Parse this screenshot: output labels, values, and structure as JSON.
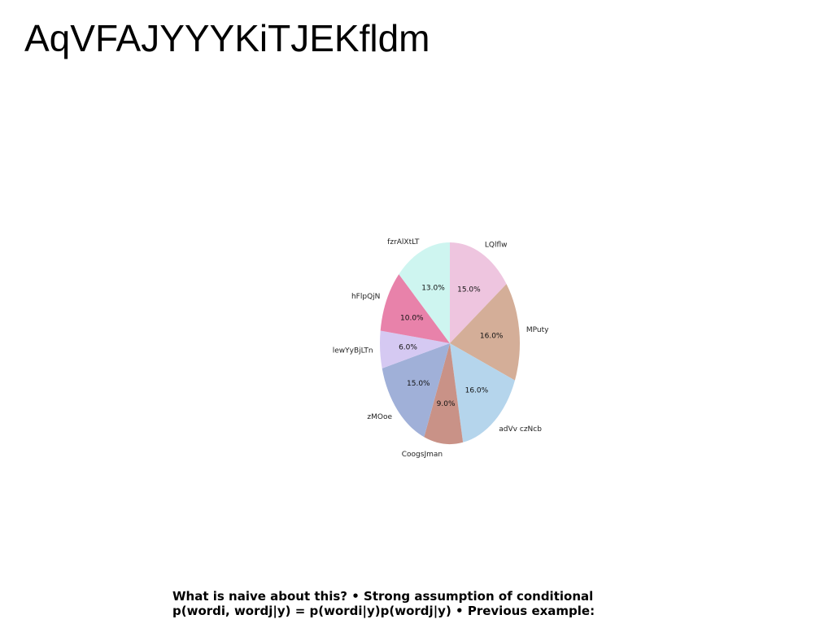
{
  "slide": {
    "title": "AqVFAJYYYKiTJEKfldm",
    "caption_line1": "What is naive about this? • Strong assumption of conditional",
    "caption_line2": "p(wordi, wordj|y) = p(wordi|y)p(wordj|y) • Previous example:"
  },
  "chart_data": {
    "type": "pie",
    "labels": [
      "LQlflw",
      "MPuty",
      "adVv czNcb",
      "CoogsJman",
      "zMOoe",
      "lewYyBjLTn",
      "hFlpQjN",
      "fzrAlXtLT"
    ],
    "values": [
      15.0,
      16.0,
      16.0,
      9.0,
      15.0,
      6.0,
      10.0,
      13.0
    ],
    "value_labels": [
      "15.0%",
      "16.0%",
      "16.0%",
      "9.0%",
      "15.0%",
      "6.0%",
      "10.0%",
      "13.0%"
    ],
    "colors": [
      "#eec5df",
      "#d4ae98",
      "#b5d5ec",
      "#c99287",
      "#a0b0d8",
      "#d5c9f2",
      "#e882aa",
      "#cef5f0"
    ],
    "start_angle_deg": 90,
    "direction": "clockwise"
  }
}
